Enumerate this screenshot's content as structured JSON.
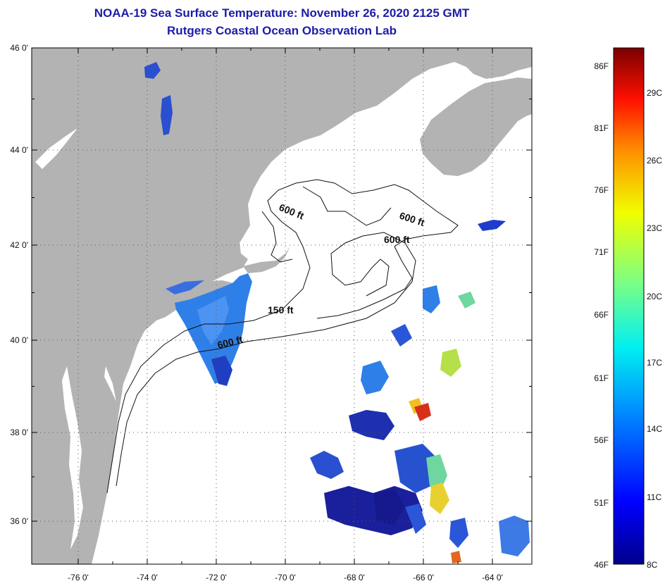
{
  "title": {
    "line1": "NOAA-19 Sea Surface Temperature:  November 26, 2020 2125 GMT",
    "line2": "Rutgers Coastal Ocean Observation Lab"
  },
  "map": {
    "lat_ticks": [
      "46 0'",
      "44 0'",
      "42 0'",
      "40 0'",
      "38 0'",
      "36 0'"
    ],
    "lon_ticks": [
      "-76 0'",
      "-74 0'",
      "-72 0'",
      "-70 0'",
      "-68 0'",
      "-66 0'",
      "-64 0'"
    ],
    "contour_labels": [
      "600 ft",
      "600 ft",
      "600 ft",
      "150 ft",
      "600 ft"
    ],
    "colors": {
      "land": "#b3b3b3",
      "ocean": "#ffffff",
      "grid": "#555555"
    }
  },
  "colorbar": {
    "fahrenheit": [
      "86F",
      "81F",
      "76F",
      "71F",
      "66F",
      "61F",
      "56F",
      "51F",
      "46F"
    ],
    "celsius": [
      "29C",
      "26C",
      "23C",
      "20C",
      "17C",
      "14C",
      "11C",
      "8C"
    ],
    "range_c": [
      8,
      30.5
    ]
  }
}
